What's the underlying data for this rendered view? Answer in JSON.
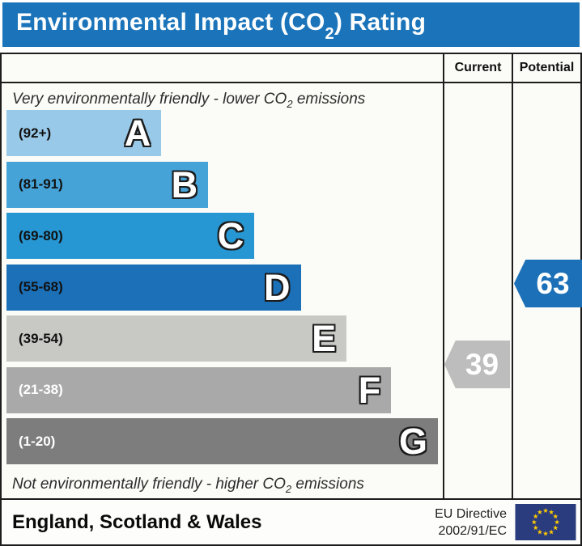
{
  "title": {
    "pre": "Environmental Impact (CO",
    "sub": "2",
    "post": ") Rating"
  },
  "header": {
    "current": "Current",
    "potential": "Potential"
  },
  "notes": {
    "top": {
      "pre": "Very environmentally friendly - lower CO",
      "sub": "2",
      "post": " emissions"
    },
    "bottom": {
      "pre": "Not environmentally friendly - higher CO",
      "sub": "2",
      "post": " emissions"
    }
  },
  "chart_data": {
    "type": "bar",
    "title": "Environmental Impact (CO2) Rating",
    "bands": [
      {
        "letter": "A",
        "range": "(92+)",
        "min": 92,
        "max": 100,
        "color": "#99c9e8",
        "label_color": "#111111",
        "width_pct": 35.1
      },
      {
        "letter": "B",
        "range": "(81-91)",
        "min": 81,
        "max": 91,
        "color": "#45a3d8",
        "label_color": "#111111",
        "width_pct": 45.7
      },
      {
        "letter": "C",
        "range": "(69-80)",
        "min": 69,
        "max": 80,
        "color": "#2697d3",
        "label_color": "#111111",
        "width_pct": 56.2
      },
      {
        "letter": "D",
        "range": "(55-68)",
        "min": 55,
        "max": 68,
        "color": "#1b70b8",
        "label_color": "#111111",
        "width_pct": 66.7
      },
      {
        "letter": "E",
        "range": "(39-54)",
        "min": 39,
        "max": 54,
        "color": "#c8c8c4",
        "label_color": "#111111",
        "width_pct": 77.1
      },
      {
        "letter": "F",
        "range": "(21-38)",
        "min": 21,
        "max": 38,
        "color": "#a9a9a9",
        "label_color": "#ffffff",
        "width_pct": 87.2
      },
      {
        "letter": "G",
        "range": "(1-20)",
        "min": 1,
        "max": 20,
        "color": "#7d7d7d",
        "label_color": "#ffffff",
        "width_pct": 97.8
      }
    ],
    "pointers": {
      "current": {
        "value": 39,
        "band": "E",
        "color": "#bdbdbd"
      },
      "potential": {
        "value": 63,
        "band": "D",
        "color": "#1b70b8"
      }
    },
    "accent_color": "#1b74ba"
  },
  "footer": {
    "region": "England, Scotland & Wales",
    "directive": [
      "EU Directive",
      "2002/91/EC"
    ],
    "flag_colors": {
      "field": "#2a3b7e",
      "stars": "#ffcc00"
    }
  }
}
